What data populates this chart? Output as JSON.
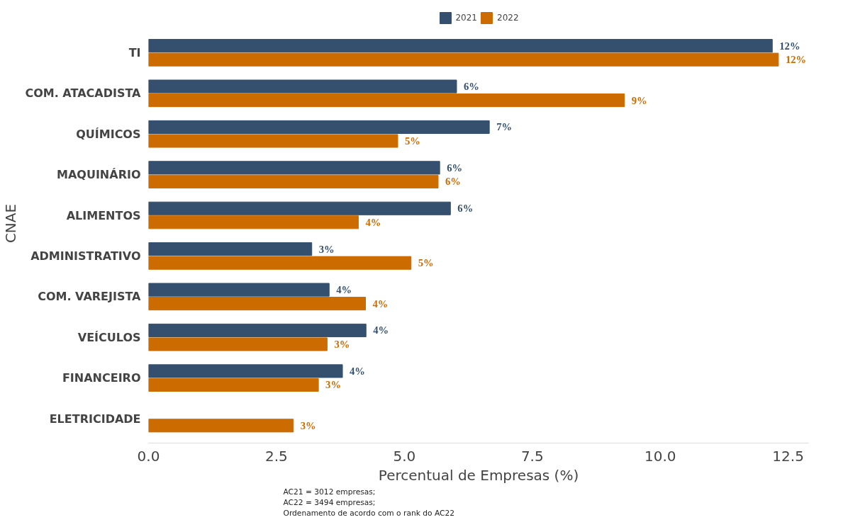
{
  "chart_data": {
    "type": "bar",
    "orientation": "horizontal",
    "categories": [
      "TI",
      "COM. ATACADISTA",
      "QUÍMICOS",
      "MAQUINÁRIO",
      "ALIMENTOS",
      "ADMINISTRATIVO",
      "COM. VAREJISTA",
      "VEÍCULOS",
      "FINANCEIRO",
      "ELETRICIDADE"
    ],
    "series": [
      {
        "name": "2021",
        "color": "#34506e",
        "values": [
          12.19,
          6.02,
          6.66,
          5.69,
          5.9,
          3.19,
          3.53,
          4.25,
          3.79,
          null
        ],
        "value_labels": [
          "12%",
          "6%",
          "7%",
          "6%",
          "6%",
          "3%",
          "4%",
          "4%",
          "4%",
          null
        ]
      },
      {
        "name": "2022",
        "color": "#cc6c00",
        "values": [
          12.31,
          9.3,
          4.87,
          5.66,
          4.1,
          5.13,
          4.24,
          3.49,
          3.32,
          2.83
        ],
        "value_labels": [
          "12%",
          "9%",
          "5%",
          "6%",
          "4%",
          "5%",
          "4%",
          "3%",
          "3%",
          "3%"
        ]
      }
    ],
    "xlabel": "Percentual de Empresas (%)",
    "ylabel": "CNAE",
    "xlim": [
      0,
      12.9
    ],
    "xticks": [
      {
        "value": 0,
        "label": "0.0"
      },
      {
        "value": 2.5,
        "label": "2.5"
      },
      {
        "value": 5,
        "label": "5.0"
      },
      {
        "value": 7.5,
        "label": "7.5"
      },
      {
        "value": 10,
        "label": "10.0"
      },
      {
        "value": 12.5,
        "label": "12.5"
      }
    ],
    "grid": false,
    "legend": "top",
    "annotations": [
      "AC21 = 3012 empresas;",
      "AC22 = 3494 empresas;",
      "Ordenamento de acordo com o rank do AC22"
    ]
  }
}
